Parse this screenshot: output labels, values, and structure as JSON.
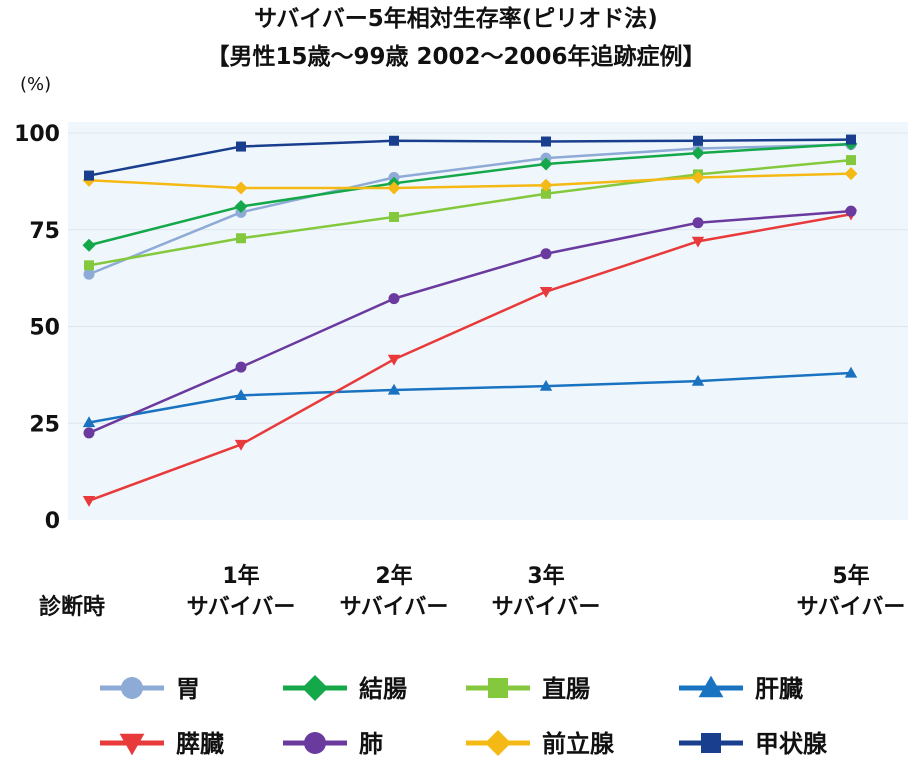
{
  "chart_data": {
    "type": "line",
    "title": "サバイバー5年相対生存率(ピリオド法)",
    "subtitle": "【男性15歳～99歳 2002～2006年追跡症例】",
    "ylabel": "(%)",
    "ylim": [
      0,
      100
    ],
    "yticks": [
      "0",
      "25",
      "50",
      "75",
      "100"
    ],
    "yticks_values": [
      0,
      25,
      50,
      75,
      100
    ],
    "grid": true,
    "legend_position": "bottom",
    "x": [
      0,
      1,
      2,
      3,
      4,
      5
    ],
    "x_labels": [
      {
        "line1": "",
        "line2": "診断時"
      },
      {
        "line1": "1年",
        "line2": "サバイバー"
      },
      {
        "line1": "2年",
        "line2": "サバイバー"
      },
      {
        "line1": "3年",
        "line2": "サバイバー"
      },
      {
        "line1": "",
        "line2": ""
      },
      {
        "line1": "5年",
        "line2": "サバイバー"
      }
    ],
    "series": [
      {
        "name": "胃",
        "color": "#8eaad6",
        "marker": "circle",
        "values": [
          63.5,
          79.5,
          88.5,
          93.5,
          96.0,
          97.0
        ]
      },
      {
        "name": "結腸",
        "color": "#14a84a",
        "marker": "diamond",
        "values": [
          71.0,
          81.0,
          87.0,
          92.0,
          94.8,
          97.2
        ]
      },
      {
        "name": "直腸",
        "color": "#84c93d",
        "marker": "square",
        "values": [
          65.8,
          72.8,
          78.3,
          84.3,
          89.3,
          93.0
        ]
      },
      {
        "name": "肝臓",
        "color": "#1a73c1",
        "marker": "triangle-up",
        "values": [
          25.2,
          32.2,
          33.6,
          34.6,
          35.9,
          38.0
        ]
      },
      {
        "name": "膵臓",
        "color": "#e83a3a",
        "marker": "triangle-down",
        "values": [
          5.0,
          19.5,
          41.5,
          59.0,
          72.0,
          79.0
        ]
      },
      {
        "name": "肺",
        "color": "#6a3a9f",
        "marker": "circle",
        "values": [
          22.5,
          39.5,
          57.2,
          68.8,
          76.8,
          79.8
        ]
      },
      {
        "name": "前立腺",
        "color": "#f5b915",
        "marker": "diamond",
        "values": [
          87.8,
          85.8,
          85.8,
          86.5,
          88.5,
          89.5
        ]
      },
      {
        "name": "甲状腺",
        "color": "#1a3e8e",
        "marker": "square",
        "values": [
          89.0,
          96.5,
          98.0,
          97.8,
          98.0,
          98.3
        ]
      }
    ]
  }
}
